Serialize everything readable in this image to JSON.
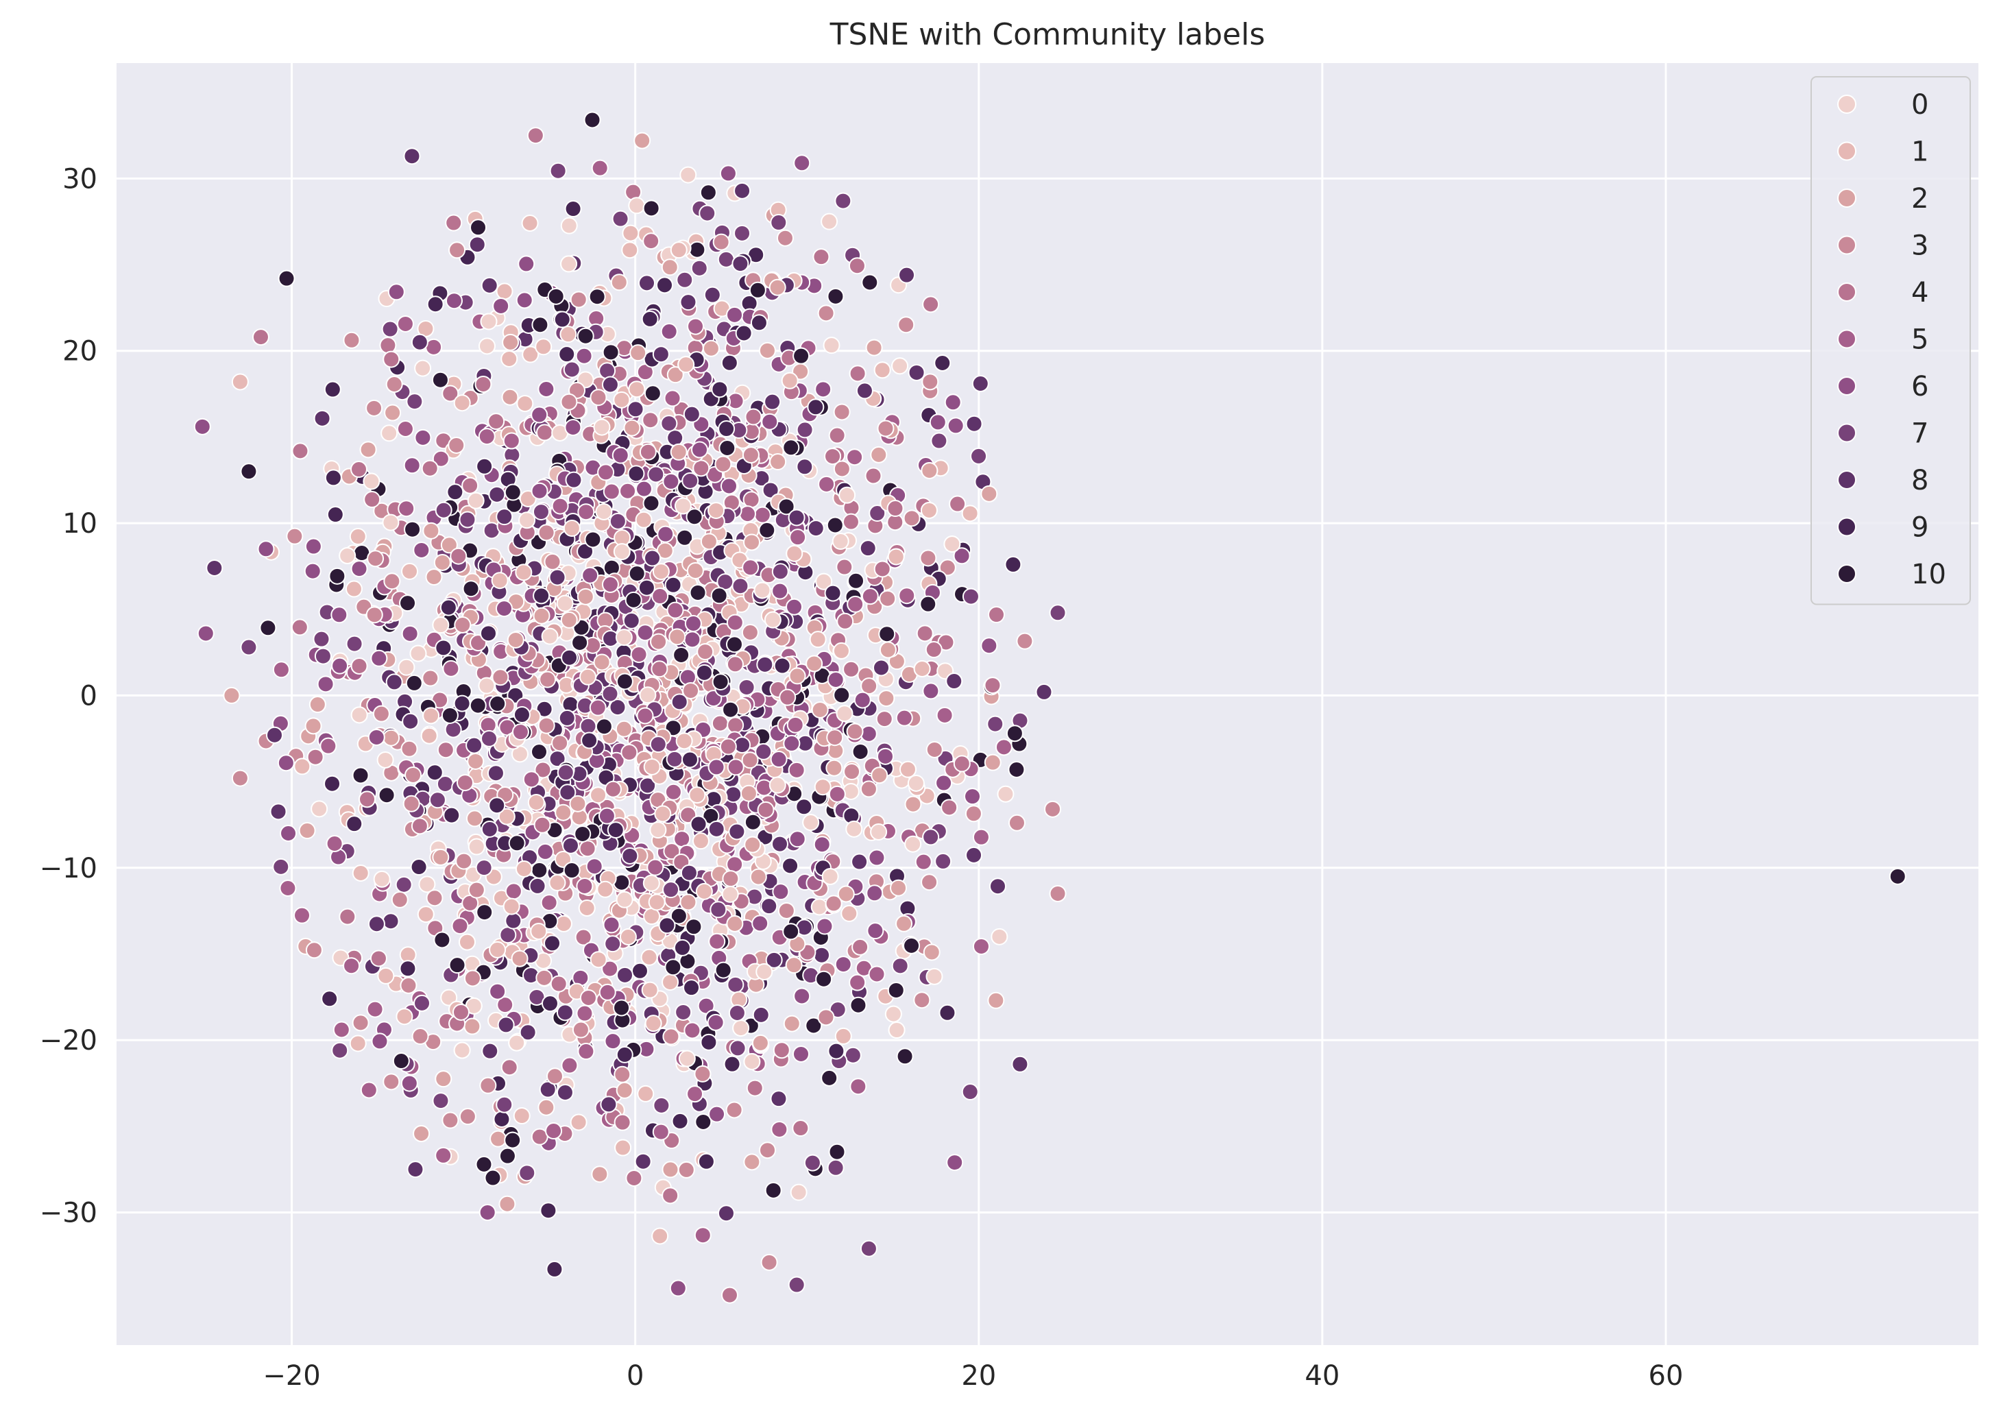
{
  "chart_data": {
    "type": "scatter",
    "title": "TSNE with Community labels",
    "xlabel": "",
    "ylabel": "",
    "xlim": [
      -30.2,
      78.2
    ],
    "ylim": [
      -37.7,
      36.7
    ],
    "xticks": [
      -20,
      0,
      20,
      40,
      60
    ],
    "yticks": [
      -30,
      -20,
      -10,
      0,
      10,
      20,
      30
    ],
    "xtick_labels": [
      "−20",
      "0",
      "20",
      "40",
      "60"
    ],
    "ytick_labels": [
      "−30",
      "−20",
      "−10",
      "0",
      "10",
      "20",
      "30"
    ],
    "grid": true,
    "legend_position": "top-right",
    "legend_title": "",
    "categories": [
      "0",
      "1",
      "2",
      "3",
      "4",
      "5",
      "6",
      "7",
      "8",
      "9",
      "10"
    ],
    "colors": [
      "#efd0cc",
      "#e6b8b5",
      "#d9a2a3",
      "#c98998",
      "#b87390",
      "#a65f8c",
      "#904f86",
      "#774279",
      "#5e3369",
      "#452553",
      "#2c1a36"
    ],
    "cluster": {
      "description_of_distribution": "approx. 3000 points per visible cloud, roughly elliptical",
      "center": [
        0.5,
        0.0
      ],
      "x_range": [
        -25,
        25
      ],
      "y_range": [
        -35,
        33.5
      ],
      "point_count": 3000
    },
    "series_samples": [
      {
        "label": "10",
        "x": 73.5,
        "y": -10.5
      },
      {
        "label": "6",
        "x": -25.2,
        "y": 15.6
      },
      {
        "label": "6",
        "x": -25.0,
        "y": 3.6
      },
      {
        "label": "2",
        "x": -23.5,
        "y": 0.0
      },
      {
        "label": "3",
        "x": -23.0,
        "y": -4.8
      },
      {
        "label": "1",
        "x": -23.0,
        "y": 18.2
      },
      {
        "label": "8",
        "x": -24.5,
        "y": 7.4
      },
      {
        "label": "10",
        "x": -22.5,
        "y": 13.0
      },
      {
        "label": "4",
        "x": -21.8,
        "y": 20.8
      },
      {
        "label": "10",
        "x": -20.3,
        "y": 24.2
      },
      {
        "label": "6",
        "x": -21.5,
        "y": 8.5
      },
      {
        "label": "7",
        "x": -22.5,
        "y": 2.8
      },
      {
        "label": "8",
        "x": -21.0,
        "y": -2.3
      },
      {
        "label": "6",
        "x": -20.2,
        "y": -8.0
      },
      {
        "label": "9",
        "x": -17.8,
        "y": -17.6
      },
      {
        "label": "7",
        "x": -17.2,
        "y": -20.6
      },
      {
        "label": "5",
        "x": -15.5,
        "y": -22.9
      },
      {
        "label": "8",
        "x": -12.8,
        "y": -27.5
      },
      {
        "label": "6",
        "x": -8.6,
        "y": -30.0
      },
      {
        "label": "9",
        "x": -4.7,
        "y": -33.3
      },
      {
        "label": "4",
        "x": 5.5,
        "y": -34.8
      },
      {
        "label": "6",
        "x": 2.5,
        "y": -34.4
      },
      {
        "label": "7",
        "x": 9.4,
        "y": -34.2
      },
      {
        "label": "7",
        "x": 13.6,
        "y": -32.1
      },
      {
        "label": "3",
        "x": 7.8,
        "y": -32.9
      },
      {
        "label": "10",
        "x": -2.5,
        "y": 33.4
      },
      {
        "label": "4",
        "x": -5.8,
        "y": 32.5
      },
      {
        "label": "2",
        "x": 0.4,
        "y": 32.2
      },
      {
        "label": "6",
        "x": 9.7,
        "y": 30.9
      },
      {
        "label": "8",
        "x": -13.0,
        "y": 31.3
      },
      {
        "label": "7",
        "x": 12.1,
        "y": 28.7
      },
      {
        "label": "8",
        "x": 15.8,
        "y": 24.4
      },
      {
        "label": "8",
        "x": 20.1,
        "y": 18.1
      },
      {
        "label": "4",
        "x": 17.2,
        "y": 22.7
      },
      {
        "label": "2",
        "x": 20.6,
        "y": 11.7
      },
      {
        "label": "9",
        "x": 22.0,
        "y": 7.6
      },
      {
        "label": "7",
        "x": 24.6,
        "y": 4.8
      },
      {
        "label": "8",
        "x": 23.8,
        "y": 0.2
      },
      {
        "label": "3",
        "x": 24.3,
        "y": -6.6
      },
      {
        "label": "3",
        "x": 24.6,
        "y": -11.5
      },
      {
        "label": "8",
        "x": 22.4,
        "y": -21.4
      },
      {
        "label": "2",
        "x": 21.0,
        "y": -17.7
      },
      {
        "label": "6",
        "x": 18.6,
        "y": -27.1
      },
      {
        "label": "7",
        "x": 19.5,
        "y": -23.0
      },
      {
        "label": "0",
        "x": 21.2,
        "y": -14.0
      },
      {
        "label": "10",
        "x": 22.2,
        "y": -4.3
      },
      {
        "label": "10",
        "x": 22.1,
        "y": -2.2
      }
    ]
  }
}
